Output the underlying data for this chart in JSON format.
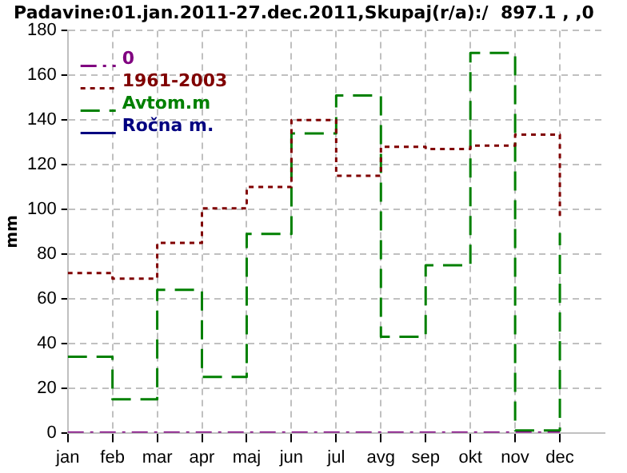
{
  "chart_data": {
    "type": "step",
    "title": "Padavine:01.jan.2011-27.dec.2011,Skupaj(r/a):/  897.1 , ,0",
    "ylabel": "mm",
    "categories": [
      "jan",
      "feb",
      "mar",
      "apr",
      "maj",
      "jun",
      "jul",
      "avg",
      "sep",
      "okt",
      "nov",
      "dec"
    ],
    "ylim": [
      0,
      180
    ],
    "yticks": [
      0,
      20,
      40,
      60,
      80,
      100,
      120,
      140,
      160,
      180
    ],
    "grid": true,
    "legend": "top left",
    "series": [
      {
        "name": "0",
        "color": "#800080",
        "line_style": "dashed",
        "values": [
          0,
          0,
          0,
          0,
          0,
          0,
          0,
          0,
          0,
          0,
          0,
          0
        ]
      },
      {
        "name": "1961-2003",
        "color": "#800000",
        "line_style": "dotted",
        "values": [
          71.5,
          69,
          85,
          100.5,
          110,
          140,
          115,
          128,
          127,
          128.5,
          133.5,
          95.5
        ]
      },
      {
        "name": "Avtom.m",
        "color": "#008000",
        "line_style": "dashed",
        "values": [
          34,
          15,
          64,
          25,
          89,
          134,
          151,
          43,
          75,
          170,
          1,
          89.5
        ]
      },
      {
        "name": "Ročna m.",
        "color": "#000080",
        "line_style": "solid",
        "values": [
          null,
          null,
          null,
          null,
          null,
          null,
          null,
          null,
          null,
          null,
          null,
          null
        ]
      }
    ]
  }
}
